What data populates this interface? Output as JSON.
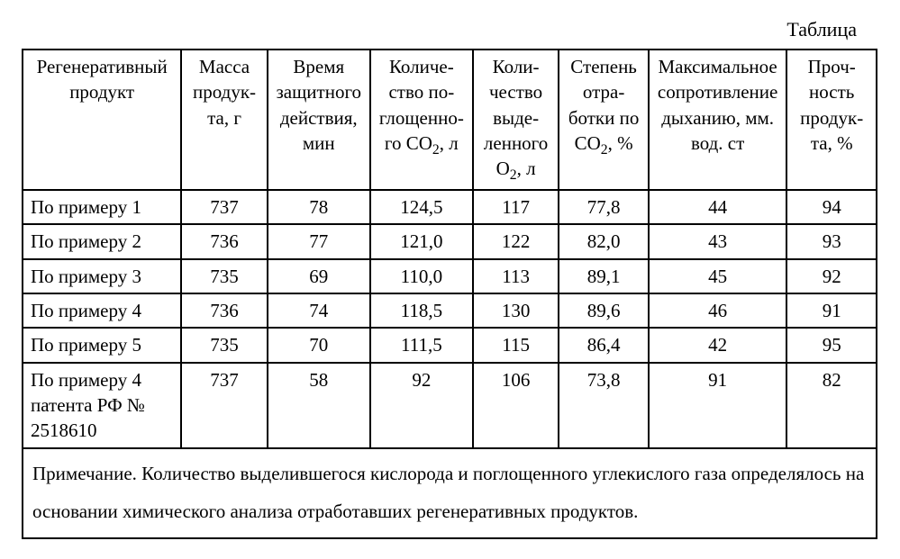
{
  "title": "Таблица",
  "columns": {
    "c0": "Регенератив­ный продукт",
    "c1": "Масса продук­та, г",
    "c2": "Время защитно­го дейст­вия, мин",
    "c3_pre": "Количе­ство по­гло­щенно­го CO",
    "c3_post": ", л",
    "c4_pre": "Коли­чество выде­лен­ного O",
    "c4_post": ", л",
    "c5_pre": "Сте­пень отра­ботки по CO",
    "c5_post": ", %",
    "c6": "Макси­мальное сопротив­ление ды­ханию, мм. вод. ст",
    "c7": "Проч­ность продук­та, %"
  },
  "col_widths": [
    "170",
    "92",
    "110",
    "110",
    "92",
    "96",
    "148",
    "96"
  ],
  "rows": [
    {
      "label": "По примеру 1",
      "mass": "737",
      "time": "78",
      "co2": "124,5",
      "o2": "117",
      "deg": "77,8",
      "res": "44",
      "str": "94"
    },
    {
      "label": "По примеру 2",
      "mass": "736",
      "time": "77",
      "co2": "121,0",
      "o2": "122",
      "deg": "82,0",
      "res": "43",
      "str": "93"
    },
    {
      "label": "По примеру 3",
      "mass": "735",
      "time": "69",
      "co2": "110,0",
      "o2": "113",
      "deg": "89,1",
      "res": "45",
      "str": "92"
    },
    {
      "label": "По примеру 4",
      "mass": "736",
      "time": "74",
      "co2": "118,5",
      "o2": "130",
      "deg": "89,6",
      "res": "46",
      "str": "91"
    },
    {
      "label": "По примеру 5",
      "mass": "735",
      "time": "70",
      "co2": "111,5",
      "o2": "115",
      "deg": "86,4",
      "res": "42",
      "str": "95"
    },
    {
      "label": "По примеру 4 патента РФ № 2518610",
      "mass": "737",
      "time": "58",
      "co2": "92",
      "o2": "106",
      "deg": "73,8",
      "res": "91",
      "str": "82"
    }
  ],
  "note": "Примечание. Количество выделившегося кислорода и поглощенного углекислого газа оп­ределялось на основании химического анализа отработавших регенеративных продуктов."
}
